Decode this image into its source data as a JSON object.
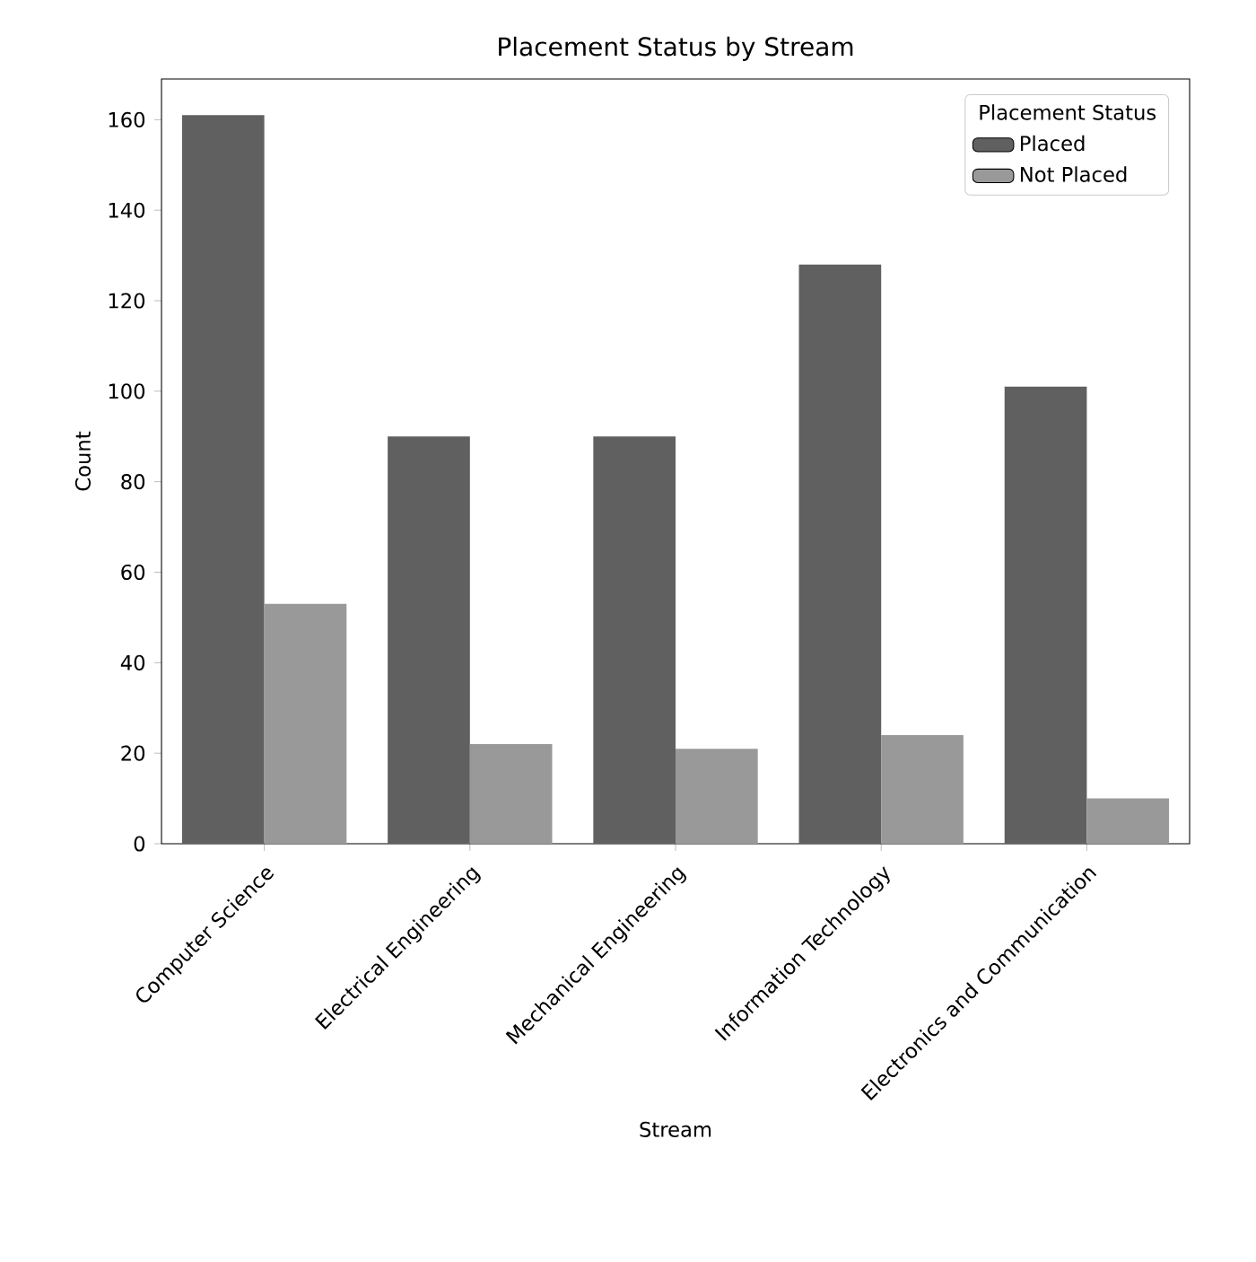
{
  "chart_data": {
    "type": "bar",
    "title": "Placement Status by Stream",
    "xlabel": "Stream",
    "ylabel": "Count",
    "legend_title": "Placement Status",
    "categories": [
      "Computer Science",
      "Electrical Engineering",
      "Mechanical Engineering",
      "Information Technology",
      "Electronics and Communication"
    ],
    "series": [
      {
        "name": "Placed",
        "color": "#606060",
        "values": [
          161,
          90,
          90,
          128,
          101
        ]
      },
      {
        "name": "Not Placed",
        "color": "#999999",
        "values": [
          53,
          22,
          21,
          24,
          10
        ]
      }
    ],
    "ylim": [
      0,
      169
    ],
    "yticks": [
      0,
      20,
      40,
      60,
      80,
      100,
      120,
      140,
      160
    ],
    "grid": false,
    "legend": "top right"
  }
}
